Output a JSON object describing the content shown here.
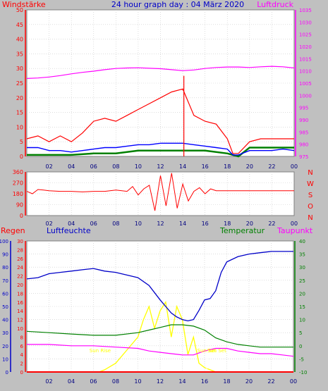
{
  "colors": {
    "background": "#c0c0c0",
    "plot": "#ffffff",
    "wind": "#ff0000",
    "gust": "#ff0000",
    "avg_wind": "#0000ff",
    "wind_green": "#008000",
    "pressure": "#ff00ff",
    "direction": "#ff0000",
    "temperature": "#008000",
    "humidity": "#0000c8",
    "dewpoint": "#ff00ff",
    "solar": "#ffff00",
    "rain": "#ff0000"
  },
  "header": {
    "left": "Windstärke",
    "center": "24 hour graph day : 04 März 2020",
    "right": "Luftdruck"
  },
  "chart_data": [
    {
      "type": "line",
      "title": "24 hour graph day : 04 März 2020",
      "ylabel": "Windstärke",
      "y2label": "Luftdruck",
      "ylim": [
        0,
        50
      ],
      "y2lim": [
        975,
        1035
      ],
      "xlim": [
        0,
        24
      ],
      "x_ticks": [
        "02",
        "04",
        "06",
        "08",
        "10",
        "12",
        "14",
        "16",
        "18",
        "20",
        "22",
        "00"
      ],
      "y_ticks": [
        "0",
        "5",
        "10",
        "15",
        "20",
        "25",
        "30",
        "35",
        "40",
        "45",
        "50"
      ],
      "y2_ticks": [
        "975",
        "980",
        "985",
        "990",
        "995",
        "1000",
        "1005",
        "1010",
        "1015",
        "1020",
        "1025",
        "1030",
        "1035"
      ],
      "series": [
        {
          "role": "pressure",
          "x": [
            0,
            1,
            2,
            3,
            4,
            5,
            6,
            7,
            8,
            9,
            10,
            11,
            12,
            13,
            14,
            15,
            16,
            17,
            18,
            19,
            20,
            21,
            22,
            23,
            24
          ],
          "values": [
            1006.9,
            1007.1,
            1007.5,
            1008.1,
            1008.8,
            1009.4,
            1009.9,
            1010.5,
            1011.0,
            1011.2,
            1011.3,
            1011.1,
            1010.9,
            1010.5,
            1010.1,
            1010.4,
            1011.0,
            1011.4,
            1011.6,
            1011.6,
            1011.4,
            1011.7,
            1011.9,
            1011.7,
            1011.2
          ]
        },
        {
          "role": "gust",
          "x": [
            0,
            1,
            2,
            3,
            4,
            5,
            6,
            7,
            8,
            9,
            10,
            11,
            12,
            13,
            14,
            15,
            16,
            17,
            18,
            18.5,
            19,
            20,
            21,
            22,
            23,
            24
          ],
          "values": [
            6,
            7,
            5,
            7,
            5,
            8,
            12,
            13,
            12,
            14,
            16,
            18,
            20,
            22,
            23,
            14,
            12,
            11,
            6,
            1,
            1,
            5,
            6,
            6,
            6,
            6
          ]
        },
        {
          "role": "avg",
          "x": [
            0,
            1,
            2,
            3,
            4,
            5,
            6,
            7,
            8,
            9,
            10,
            11,
            12,
            13,
            14,
            15,
            16,
            17,
            18,
            18.5,
            19,
            20,
            21,
            22,
            23,
            24
          ],
          "values": [
            3,
            3,
            2,
            2,
            1.5,
            2,
            2.5,
            3,
            3,
            3.5,
            4,
            4,
            4.5,
            4.5,
            4.5,
            4,
            3.5,
            3,
            2.5,
            0.5,
            0.5,
            2,
            2,
            2,
            2.5,
            2
          ]
        },
        {
          "role": "green",
          "x": [
            0,
            2,
            4,
            6,
            8,
            10,
            12,
            14,
            16,
            18,
            19,
            20,
            21,
            22,
            23,
            24
          ],
          "values": [
            0.5,
            0.5,
            0.5,
            1,
            1,
            2,
            2,
            2,
            2,
            1,
            0,
            3,
            3,
            3,
            3,
            3
          ]
        },
        {
          "role": "peak",
          "x": [
            14.1
          ],
          "values": [
            27.5
          ]
        }
      ]
    },
    {
      "type": "line",
      "ylabel": "Wind direction",
      "ylim": [
        0,
        360
      ],
      "y_ticks": [
        "0",
        "90",
        "180",
        "270",
        "360"
      ],
      "compass_labels": [
        "N",
        "W",
        "S",
        "O",
        "N"
      ],
      "xlim": [
        0,
        24
      ],
      "x_ticks": [
        "02",
        "04",
        "06",
        "08",
        "10",
        "12",
        "14",
        "16",
        "18",
        "20",
        "22",
        "00"
      ],
      "series": [
        {
          "role": "direction",
          "x": [
            0,
            0.5,
            1,
            1.5,
            2,
            3,
            4,
            5,
            6,
            7,
            8,
            9,
            9.5,
            10,
            10.5,
            11,
            11.5,
            12,
            12.5,
            13,
            13.5,
            14,
            14.5,
            15,
            15.5,
            16,
            16.5,
            17,
            18,
            19,
            20,
            21,
            22,
            23,
            24
          ],
          "values": [
            200,
            180,
            215,
            210,
            205,
            200,
            200,
            195,
            200,
            200,
            210,
            200,
            240,
            170,
            220,
            250,
            40,
            330,
            80,
            350,
            60,
            260,
            120,
            200,
            230,
            180,
            220,
            205,
            205,
            205,
            205,
            205,
            205,
            205,
            205
          ]
        }
      ]
    },
    {
      "type": "line",
      "legend": [
        "Regen",
        "Luftfeuchte",
        "Temperatur",
        "Taupunkt"
      ],
      "ylim_humidity": [
        0,
        100
      ],
      "ylim_rain": [
        0,
        30
      ],
      "ylim_temperature": [
        -10,
        40
      ],
      "xlim": [
        0,
        24
      ],
      "x_ticks": [
        "02",
        "04",
        "06",
        "08",
        "10",
        "12",
        "14",
        "16",
        "18",
        "20",
        "22",
        "00"
      ],
      "humidity_ticks": [
        "0",
        "10",
        "20",
        "30",
        "40",
        "50",
        "60",
        "70",
        "80",
        "90",
        "100"
      ],
      "rain_ticks": [
        "0",
        "2",
        "4",
        "6",
        "8",
        "10",
        "12",
        "14",
        "16",
        "18",
        "20",
        "22",
        "24",
        "26",
        "28",
        "30"
      ],
      "temperature_ticks": [
        "-10",
        "-5",
        "0",
        "5",
        "10",
        "15",
        "20",
        "25",
        "30",
        "35",
        "40"
      ],
      "annotations": [
        {
          "text": "Sun Rise",
          "x": 6.6
        },
        {
          "text": "Sun Set",
          "x": 16.2
        },
        {
          "text": "Sun Set",
          "x": 17.1
        }
      ],
      "series": [
        {
          "role": "humidity",
          "x": [
            0,
            1,
            2,
            3,
            4,
            5,
            6,
            7,
            8,
            9,
            10,
            11,
            12,
            12.5,
            13,
            13.5,
            14,
            14.5,
            15,
            15.5,
            16,
            16.5,
            17,
            17.5,
            18,
            19,
            20,
            21,
            22,
            23,
            24
          ],
          "values": [
            71,
            72,
            75,
            76,
            77,
            78,
            79,
            77,
            76,
            74,
            72,
            66,
            55,
            50,
            45,
            42,
            40,
            39,
            40,
            47,
            55,
            56,
            62,
            76,
            84,
            88,
            90,
            91,
            92,
            92,
            92
          ]
        },
        {
          "role": "temperature",
          "x": [
            0,
            2,
            4,
            6,
            8,
            10,
            11,
            12,
            13,
            14,
            15,
            16,
            17,
            18,
            19,
            20,
            21,
            22,
            23,
            24
          ],
          "values": [
            5.5,
            5,
            4.5,
            4,
            4,
            5,
            6,
            7,
            8,
            8,
            7.5,
            6,
            3,
            1.5,
            0.5,
            0,
            -0.5,
            -0.5,
            -0.5,
            -0.5
          ]
        },
        {
          "role": "dewpoint",
          "x": [
            0,
            2,
            4,
            6,
            8,
            10,
            11,
            12,
            13,
            14,
            15,
            16,
            17,
            18,
            19,
            20,
            21,
            22,
            23,
            24
          ],
          "values": [
            0.5,
            0.5,
            0,
            0,
            -0.5,
            -1,
            -2,
            -2.5,
            -3,
            -3.5,
            -3.5,
            -2,
            -1,
            -1,
            -2,
            -2.5,
            -3,
            -3,
            -3.5,
            -4
          ]
        },
        {
          "role": "solar",
          "x": [
            0,
            6.5,
            7,
            8,
            9,
            10,
            10.5,
            11,
            11.5,
            12,
            12.5,
            13,
            13.5,
            14,
            14.5,
            15,
            15.5,
            16,
            16.5,
            17,
            24
          ],
          "values": [
            0,
            0,
            0.5,
            2,
            5,
            8,
            12,
            15,
            10,
            14,
            16,
            8,
            15,
            12,
            4,
            8,
            2,
            1,
            0.5,
            0,
            0
          ]
        },
        {
          "role": "rain",
          "x": [
            0,
            24
          ],
          "values": [
            0,
            0
          ]
        }
      ]
    }
  ]
}
